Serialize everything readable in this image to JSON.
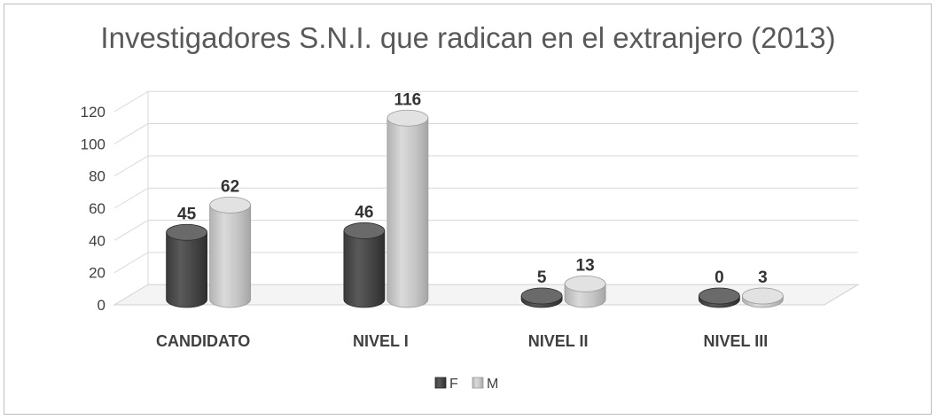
{
  "chart_data": {
    "type": "bar",
    "title": "Investigadores S.N.I. que radican en el extranjero (2013)",
    "categories": [
      "CANDIDATO",
      "NIVEL I",
      "NIVEL II",
      "NIVEL III"
    ],
    "series": [
      {
        "name": "F",
        "values": [
          45,
          46,
          5,
          0
        ],
        "color": "#4a4a4a"
      },
      {
        "name": "M",
        "values": [
          62,
          116,
          13,
          3
        ],
        "color": "#c4c4c4"
      }
    ],
    "xlabel": "",
    "ylabel": "",
    "ylim": [
      0,
      120
    ],
    "yticks": [
      "0",
      "20",
      "40",
      "60",
      "80",
      "100",
      "120"
    ],
    "grid": true,
    "style": "3d-cylinder",
    "legend_position": "bottom"
  }
}
